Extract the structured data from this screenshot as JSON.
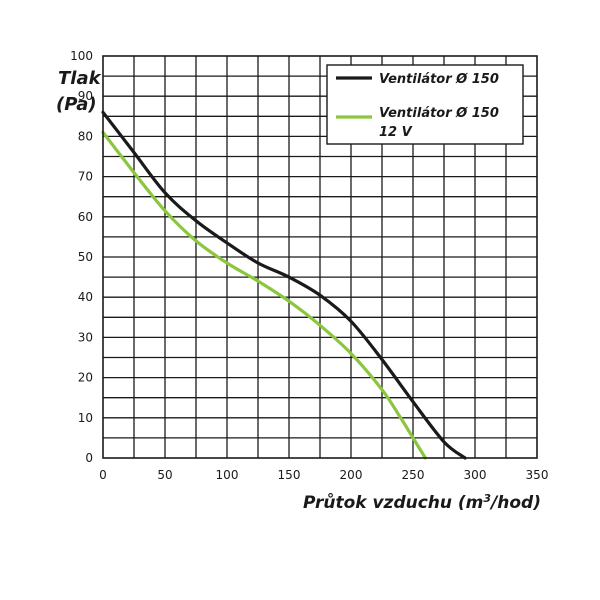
{
  "chart_data": {
    "type": "line",
    "title": "",
    "ylabel": [
      "Tlak",
      "(Pa)"
    ],
    "xlabel": "Průtok vzduchu (m³/hod)",
    "xlim": [
      0,
      350
    ],
    "ylim": [
      0,
      100
    ],
    "x_ticks": [
      0,
      50,
      100,
      150,
      200,
      250,
      300,
      350
    ],
    "y_ticks": [
      0,
      10,
      20,
      30,
      40,
      50,
      60,
      70,
      80,
      90,
      100
    ],
    "grid": true,
    "legend_position": "top-right",
    "series": [
      {
        "name": "Ventilátor Ø 150",
        "name_lines": [
          "Ventilátor Ø 150"
        ],
        "color": "#1a1a1a",
        "points": [
          [
            0,
            86
          ],
          [
            25,
            76
          ],
          [
            50,
            66
          ],
          [
            75,
            59
          ],
          [
            100,
            53.5
          ],
          [
            125,
            48.5
          ],
          [
            150,
            45
          ],
          [
            175,
            40.5
          ],
          [
            200,
            34
          ],
          [
            225,
            24.5
          ],
          [
            250,
            14
          ],
          [
            275,
            4
          ],
          [
            292,
            0
          ]
        ]
      },
      {
        "name": "Ventilátor Ø 150 12 V",
        "name_lines": [
          "Ventilátor Ø 150",
          "12 V"
        ],
        "color": "#8cc63f",
        "points": [
          [
            0,
            81
          ],
          [
            25,
            71
          ],
          [
            50,
            61.5
          ],
          [
            75,
            54
          ],
          [
            100,
            48.5
          ],
          [
            125,
            44
          ],
          [
            150,
            39
          ],
          [
            175,
            33
          ],
          [
            200,
            26
          ],
          [
            225,
            17
          ],
          [
            240,
            10
          ],
          [
            250,
            5
          ],
          [
            260,
            0
          ]
        ]
      }
    ]
  }
}
